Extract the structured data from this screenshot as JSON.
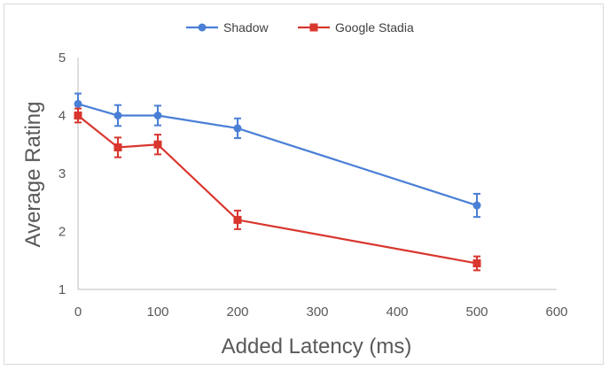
{
  "chart_data": {
    "type": "line",
    "title": "",
    "xlabel": "Added  Latency (ms)",
    "ylabel": "Average Rating",
    "xlim": [
      0,
      600
    ],
    "ylim": [
      1,
      5
    ],
    "x_ticks": [
      "0",
      "100",
      "200",
      "300",
      "400",
      "500",
      "600"
    ],
    "y_ticks": [
      "1",
      "2",
      "3",
      "4",
      "5"
    ],
    "grid": false,
    "legend_position": "top",
    "series": [
      {
        "name": "Shadow",
        "color": "#4a7fd6",
        "marker": "circle",
        "points": [
          {
            "x": 0,
            "y": 4.2,
            "err": 0.18
          },
          {
            "x": 50,
            "y": 4.0,
            "err": 0.18
          },
          {
            "x": 100,
            "y": 4.0,
            "err": 0.17
          },
          {
            "x": 200,
            "y": 3.78,
            "err": 0.17
          },
          {
            "x": 500,
            "y": 2.45,
            "err": 0.2
          }
        ]
      },
      {
        "name": "Google Stadia",
        "color": "#d9362e",
        "marker": "square",
        "points": [
          {
            "x": 0,
            "y": 4.0,
            "err": 0.12
          },
          {
            "x": 50,
            "y": 3.45,
            "err": 0.17
          },
          {
            "x": 100,
            "y": 3.5,
            "err": 0.17
          },
          {
            "x": 200,
            "y": 2.2,
            "err": 0.16
          },
          {
            "x": 500,
            "y": 1.45,
            "err": 0.12
          }
        ]
      }
    ]
  }
}
